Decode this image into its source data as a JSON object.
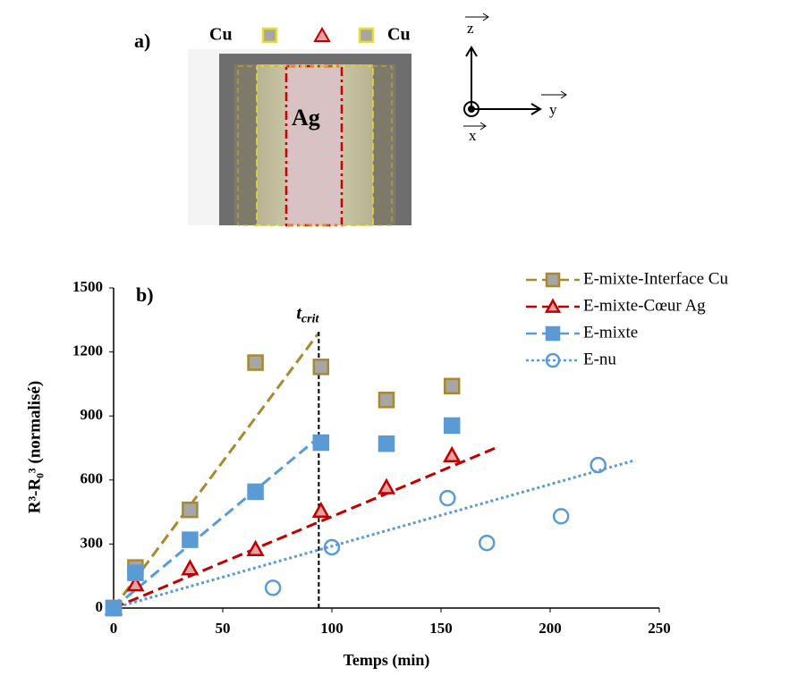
{
  "panel_a": {
    "label": "a)",
    "left_metal": "Cu",
    "right_metal": "Cu",
    "center_metal": "Ag",
    "axis_z": "z",
    "axis_y": "y",
    "axis_x": "x"
  },
  "chart_data": {
    "type": "scatter",
    "panel_label": "b)",
    "x_label": "Temps (min)",
    "y_label": "R³-R₀³ (normalisé)",
    "xlim": [
      0,
      250
    ],
    "ylim": [
      0,
      1500
    ],
    "xticks": [
      0,
      50,
      100,
      150,
      200,
      250
    ],
    "yticks": [
      0,
      300,
      600,
      900,
      1200,
      1500
    ],
    "vline": {
      "x": 94,
      "y": [
        0,
        1300
      ],
      "label": "t",
      "label_sub": "crit"
    },
    "series": [
      {
        "name": "E-mixte-Interface Cu",
        "marker": "square",
        "color": "#a8892c",
        "fill": "#a6a6a6",
        "line": "dash",
        "x": [
          0,
          10,
          35,
          65,
          95,
          125,
          155
        ],
        "values": [
          0,
          190,
          460,
          1150,
          1130,
          975,
          1040
        ],
        "trend_x": [
          0,
          94
        ],
        "trend_y": [
          0,
          1290
        ]
      },
      {
        "name": "E-mixte-Cœur Ag",
        "marker": "triangle",
        "color": "#c00000",
        "fill": "#e8a2a2",
        "line": "dash",
        "x": [
          0,
          10,
          35,
          65,
          95,
          125,
          155
        ],
        "values": [
          0,
          110,
          185,
          275,
          455,
          565,
          715
        ],
        "trend_x": [
          0,
          175
        ],
        "trend_y": [
          0,
          750
        ]
      },
      {
        "name": "E-mixte",
        "marker": "square",
        "color": "#5b9bd5",
        "fill": "#5b9bd5",
        "line": "dash",
        "x": [
          0,
          10,
          35,
          65,
          95,
          125,
          155
        ],
        "values": [
          0,
          165,
          320,
          545,
          775,
          770,
          855
        ],
        "trend_x": [
          0,
          94
        ],
        "trend_y": [
          0,
          800
        ]
      },
      {
        "name": "E-nu",
        "marker": "circle",
        "color": "#5b9bd5",
        "fill": "none",
        "line": "dot",
        "x": [
          0,
          73,
          100,
          153,
          171,
          205,
          222
        ],
        "values": [
          0,
          95,
          285,
          515,
          305,
          430,
          670
        ],
        "trend_x": [
          0,
          238
        ],
        "trend_y": [
          0,
          690
        ]
      }
    ]
  }
}
